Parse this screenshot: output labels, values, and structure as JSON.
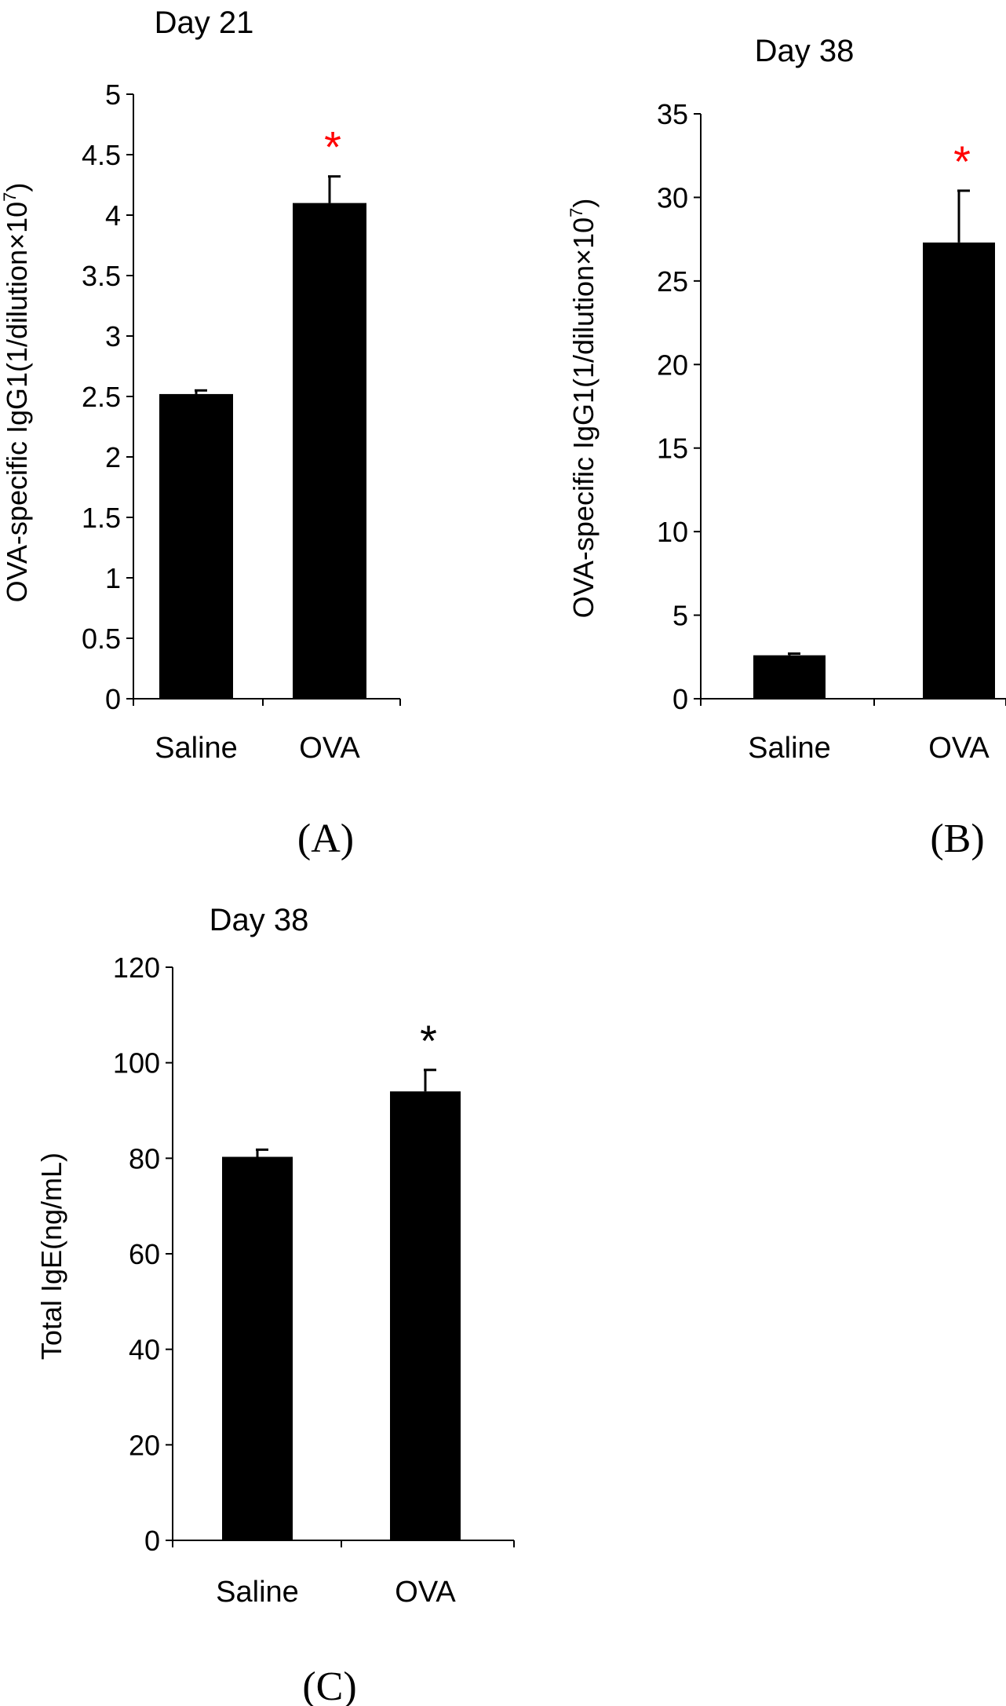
{
  "chart_data": [
    {
      "type": "bar",
      "panel_label": "(A)",
      "title": "Day 21",
      "ylabel": "OVA-specific IgG1(1/dilution×10",
      "ylabel_sup": "7",
      "ylabel_close": ")",
      "categories": [
        "Saline",
        "OVA"
      ],
      "values": [
        2.52,
        4.1
      ],
      "errors": [
        0.03,
        0.22
      ],
      "ylim": [
        0,
        5
      ],
      "yticks": [
        0,
        0.5,
        1,
        1.5,
        2,
        2.5,
        3,
        3.5,
        4,
        4.5,
        5
      ],
      "ytick_labels": [
        "0",
        "0.5",
        "1",
        "1.5",
        "2",
        "2.5",
        "3",
        "3.5",
        "4",
        "4.5",
        "5"
      ],
      "significance": [
        "",
        "*"
      ],
      "significance_color": "#ff0000",
      "bar_color": "#000000"
    },
    {
      "type": "bar",
      "panel_label": "(B)",
      "title": "Day 38",
      "ylabel": "OVA-specific IgG1(1/dilution×10",
      "ylabel_sup": "7",
      "ylabel_close": ")",
      "categories": [
        "Saline",
        "OVA"
      ],
      "values": [
        2.6,
        27.3
      ],
      "errors": [
        0.1,
        3.1
      ],
      "ylim": [
        0,
        35
      ],
      "yticks": [
        0,
        5,
        10,
        15,
        20,
        25,
        30,
        35
      ],
      "ytick_labels": [
        "0",
        "5",
        "10",
        "15",
        "20",
        "25",
        "30",
        "35"
      ],
      "significance": [
        "",
        "*"
      ],
      "significance_color": "#ff0000",
      "bar_color": "#000000"
    },
    {
      "type": "bar",
      "panel_label": "(C)",
      "title": "Day 38",
      "ylabel": "Total IgE(ng/mL)",
      "ylabel_sup": "",
      "ylabel_close": "",
      "categories": [
        "Saline",
        "OVA"
      ],
      "values": [
        80.3,
        94.0
      ],
      "errors": [
        1.5,
        4.5
      ],
      "ylim": [
        0,
        120
      ],
      "yticks": [
        0,
        20,
        40,
        60,
        80,
        100,
        120
      ],
      "ytick_labels": [
        "0",
        "20",
        "40",
        "60",
        "80",
        "100",
        "120"
      ],
      "significance": [
        "",
        "*"
      ],
      "significance_color": "#000000",
      "bar_color": "#000000"
    }
  ]
}
